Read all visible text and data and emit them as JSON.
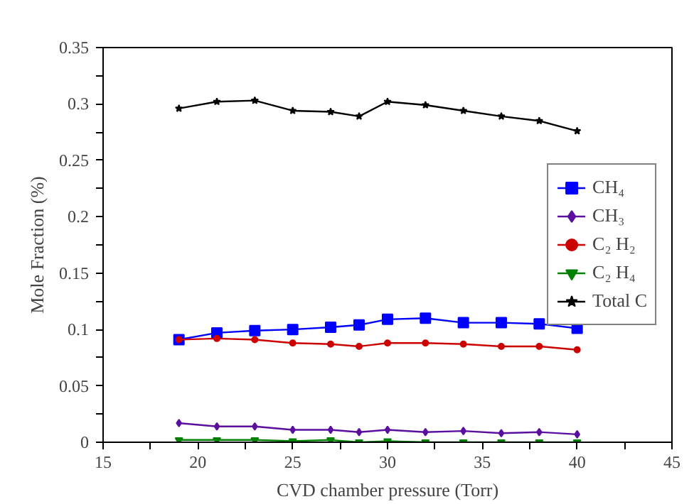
{
  "chart_data": {
    "type": "line",
    "xlabel": "CVD chamber pressure (Torr)",
    "ylabel": "Mole Fraction (%)",
    "x": [
      19,
      21,
      23,
      25,
      27,
      28.5,
      30,
      32,
      34,
      36,
      38,
      40
    ],
    "xlim": [
      15,
      45
    ],
    "xticks": [
      15,
      {
        "value": 17.5,
        "label": null
      },
      20,
      {
        "value": 22.5,
        "label": null
      },
      25,
      {
        "value": 27.5,
        "label": null
      },
      30,
      {
        "value": 32.5,
        "label": null
      },
      35,
      {
        "value": 37.5,
        "label": null
      },
      40,
      {
        "value": 42.5,
        "label": null
      },
      45
    ],
    "ylim": [
      0,
      0.35
    ],
    "yticks": [
      0,
      {
        "value": 0.025,
        "label": null
      },
      0.05,
      {
        "value": 0.075,
        "label": null
      },
      0.1,
      {
        "value": 0.125,
        "label": null
      },
      0.15,
      {
        "value": 0.175,
        "label": null
      },
      0.2,
      {
        "value": 0.225,
        "label": null
      },
      0.25,
      {
        "value": 0.275,
        "label": null
      },
      0.3,
      {
        "value": 0.325,
        "label": null
      },
      0.35
    ],
    "grid": false,
    "legend": "right",
    "line_style": "solid",
    "series": [
      {
        "name": "CH₄",
        "color": "#0000ff",
        "marker": "square",
        "values": [
          0.091,
          0.097,
          0.099,
          0.1,
          0.102,
          0.104,
          0.109,
          0.11,
          0.106,
          0.106,
          0.105,
          0.101
        ]
      },
      {
        "name": "CH₃",
        "color": "#5a0fa0",
        "marker": "diamond",
        "values": [
          0.017,
          0.014,
          0.014,
          0.011,
          0.011,
          0.009,
          0.011,
          0.009,
          0.01,
          0.008,
          0.009,
          0.007
        ]
      },
      {
        "name": "C₂ H₂",
        "color": "#cc0000",
        "marker": "circle",
        "values": [
          0.091,
          0.092,
          0.091,
          0.088,
          0.087,
          0.085,
          0.088,
          0.088,
          0.087,
          0.085,
          0.085,
          0.082
        ]
      },
      {
        "name": "C₂ H₄",
        "color": "#008000",
        "marker": "triangle",
        "values": [
          0.002,
          0.002,
          0.002,
          0.001,
          0.002,
          0,
          0.001,
          0,
          0,
          0,
          0,
          0
        ]
      },
      {
        "name": "Total C",
        "color": "#000000",
        "marker": "star",
        "values": [
          0.296,
          0.302,
          0.303,
          0.294,
          0.293,
          0.289,
          0.302,
          0.299,
          0.294,
          0.289,
          0.285,
          0.276
        ]
      }
    ]
  }
}
